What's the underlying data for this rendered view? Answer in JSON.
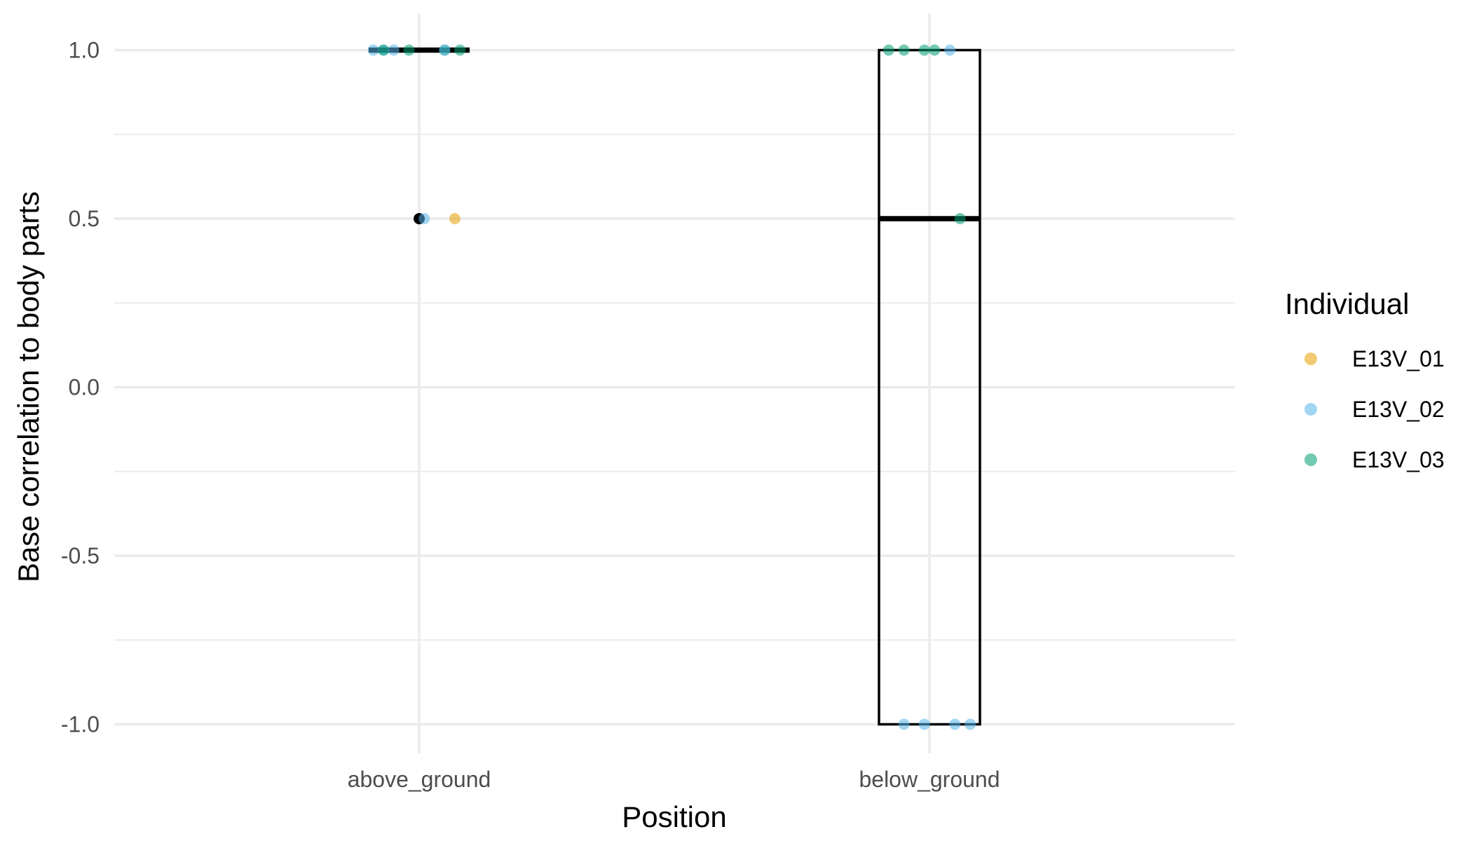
{
  "chart_data": {
    "type": "boxplot",
    "xlabel": "Position",
    "ylabel": "Base correlation to body parts",
    "categories": [
      "above_ground",
      "below_ground"
    ],
    "ylim": [
      -1.1,
      1.1
    ],
    "y_ticks": [
      1.0,
      0.5,
      0.0,
      -0.5,
      -1.0
    ],
    "y_tick_labels": [
      "1.0",
      "0.5",
      "0.0",
      "-0.5",
      "-1.0"
    ],
    "grid": true,
    "legend": {
      "title": "Individual",
      "placement": "right",
      "entries": [
        {
          "name": "E13V_01",
          "color": "#E69F00"
        },
        {
          "name": "E13V_02",
          "color": "#56B4E9"
        },
        {
          "name": "E13V_03",
          "color": "#009E73"
        }
      ]
    },
    "boxes": [
      {
        "category": "above_ground",
        "min": 1.0,
        "q1": 1.0,
        "median": 1.0,
        "q3": 1.0,
        "max": 1.0,
        "outliers": [
          0.5
        ]
      },
      {
        "category": "below_ground",
        "min": -1.0,
        "q1": -1.0,
        "median": 0.5,
        "q3": 1.0,
        "max": 1.0,
        "outliers": []
      }
    ],
    "points": [
      {
        "category": "above_ground",
        "jitter": -0.09,
        "y": 1.0,
        "individual": "E13V_02"
      },
      {
        "category": "above_ground",
        "jitter": -0.07,
        "y": 1.0,
        "individual": "E13V_02"
      },
      {
        "category": "above_ground",
        "jitter": -0.07,
        "y": 1.0,
        "individual": "E13V_03"
      },
      {
        "category": "above_ground",
        "jitter": -0.05,
        "y": 1.0,
        "individual": "E13V_02"
      },
      {
        "category": "above_ground",
        "jitter": -0.02,
        "y": 1.0,
        "individual": "E13V_03"
      },
      {
        "category": "above_ground",
        "jitter": 0.05,
        "y": 1.0,
        "individual": "E13V_03"
      },
      {
        "category": "above_ground",
        "jitter": 0.05,
        "y": 1.0,
        "individual": "E13V_02"
      },
      {
        "category": "above_ground",
        "jitter": 0.08,
        "y": 1.0,
        "individual": "E13V_03"
      },
      {
        "category": "above_ground",
        "jitter": 0.01,
        "y": 0.5,
        "individual": "E13V_02"
      },
      {
        "category": "above_ground",
        "jitter": 0.07,
        "y": 0.5,
        "individual": "E13V_01"
      },
      {
        "category": "below_ground",
        "jitter": -0.08,
        "y": 1.0,
        "individual": "E13V_03"
      },
      {
        "category": "below_ground",
        "jitter": -0.05,
        "y": 1.0,
        "individual": "E13V_03"
      },
      {
        "category": "below_ground",
        "jitter": -0.01,
        "y": 1.0,
        "individual": "E13V_03"
      },
      {
        "category": "below_ground",
        "jitter": 0.01,
        "y": 1.0,
        "individual": "E13V_03"
      },
      {
        "category": "below_ground",
        "jitter": 0.04,
        "y": 1.0,
        "individual": "E13V_02"
      },
      {
        "category": "below_ground",
        "jitter": 0.06,
        "y": 0.5,
        "individual": "E13V_03"
      },
      {
        "category": "below_ground",
        "jitter": -0.05,
        "y": -1.0,
        "individual": "E13V_02"
      },
      {
        "category": "below_ground",
        "jitter": -0.01,
        "y": -1.0,
        "individual": "E13V_02"
      },
      {
        "category": "below_ground",
        "jitter": 0.05,
        "y": -1.0,
        "individual": "E13V_02"
      },
      {
        "category": "below_ground",
        "jitter": 0.08,
        "y": -1.0,
        "individual": "E13V_02"
      }
    ]
  }
}
